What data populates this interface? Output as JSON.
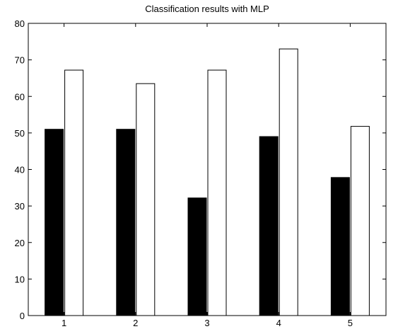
{
  "chart_data": {
    "type": "bar",
    "title": "Classification results with MLP",
    "xlabel": "",
    "ylabel": "",
    "categories": [
      "1",
      "2",
      "3",
      "4",
      "5"
    ],
    "series": [
      {
        "values": [
          51,
          51,
          32.2,
          49,
          37.8
        ],
        "fill": "#000000"
      },
      {
        "values": [
          67.2,
          63.5,
          67.2,
          73,
          51.8
        ],
        "fill": "#ffffff"
      }
    ],
    "ylim": [
      0,
      80
    ],
    "yticks": [
      0,
      10,
      20,
      30,
      40,
      50,
      60,
      70,
      80
    ],
    "xlim": [
      0.5,
      5.5
    ],
    "grid": false,
    "legend": "none"
  }
}
